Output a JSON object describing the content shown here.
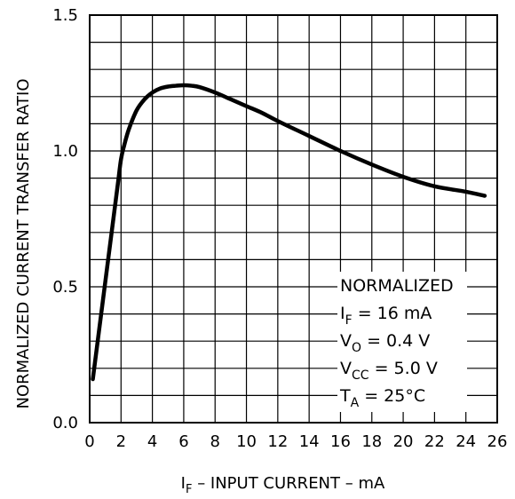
{
  "chart_data": {
    "type": "line",
    "title": "",
    "xlabel": {
      "main": "I",
      "sub": "F",
      "rest": " – INPUT CURRENT – mA"
    },
    "ylabel": "NORMALIZED CURRENT TRANSFER RATIO",
    "xlim": [
      0,
      26
    ],
    "ylim": [
      0,
      1.5
    ],
    "x_ticks": [
      "0",
      "2",
      "4",
      "6",
      "8",
      "10",
      "12",
      "14",
      "16",
      "18",
      "20",
      "22",
      "24",
      "26"
    ],
    "y_ticks": [
      "0.0",
      "0.5",
      "1.0",
      "1.5"
    ],
    "x_grid_step": 2,
    "y_grid_step": 0.1,
    "grid": true,
    "series": [
      {
        "x": [
          0.2,
          0.6,
          1.0,
          1.4,
          1.8,
          2.0,
          2.2,
          2.5,
          3.0,
          3.5,
          4.0,
          4.5,
          5.0,
          5.5,
          6.0,
          6.5,
          7.0,
          8.0,
          9.0,
          10.0,
          11.0,
          12.0,
          14.0,
          16.0,
          18.0,
          20.0,
          22.0,
          24.0,
          25.2
        ],
        "y": [
          0.16,
          0.34,
          0.52,
          0.7,
          0.88,
          0.97,
          1.02,
          1.08,
          1.15,
          1.19,
          1.215,
          1.23,
          1.237,
          1.24,
          1.242,
          1.24,
          1.235,
          1.215,
          1.19,
          1.165,
          1.14,
          1.11,
          1.055,
          1.0,
          0.95,
          0.905,
          0.87,
          0.85,
          0.835
        ]
      }
    ],
    "legend_box": [
      {
        "main": "NORMALIZED",
        "sub": "",
        "rest": ""
      },
      {
        "main": "I",
        "sub": "F",
        "rest": " = 16 mA"
      },
      {
        "main": "V",
        "sub": "O",
        "rest": " = 0.4 V"
      },
      {
        "main": "V",
        "sub": "CC",
        "rest": " = 5.0 V"
      },
      {
        "main": "T",
        "sub": "A",
        "rest": " = 25°C"
      }
    ],
    "legend_placement": "bottom-right",
    "colors": {
      "line": "#000000",
      "grid": "#000000",
      "background": "#ffffff"
    }
  }
}
